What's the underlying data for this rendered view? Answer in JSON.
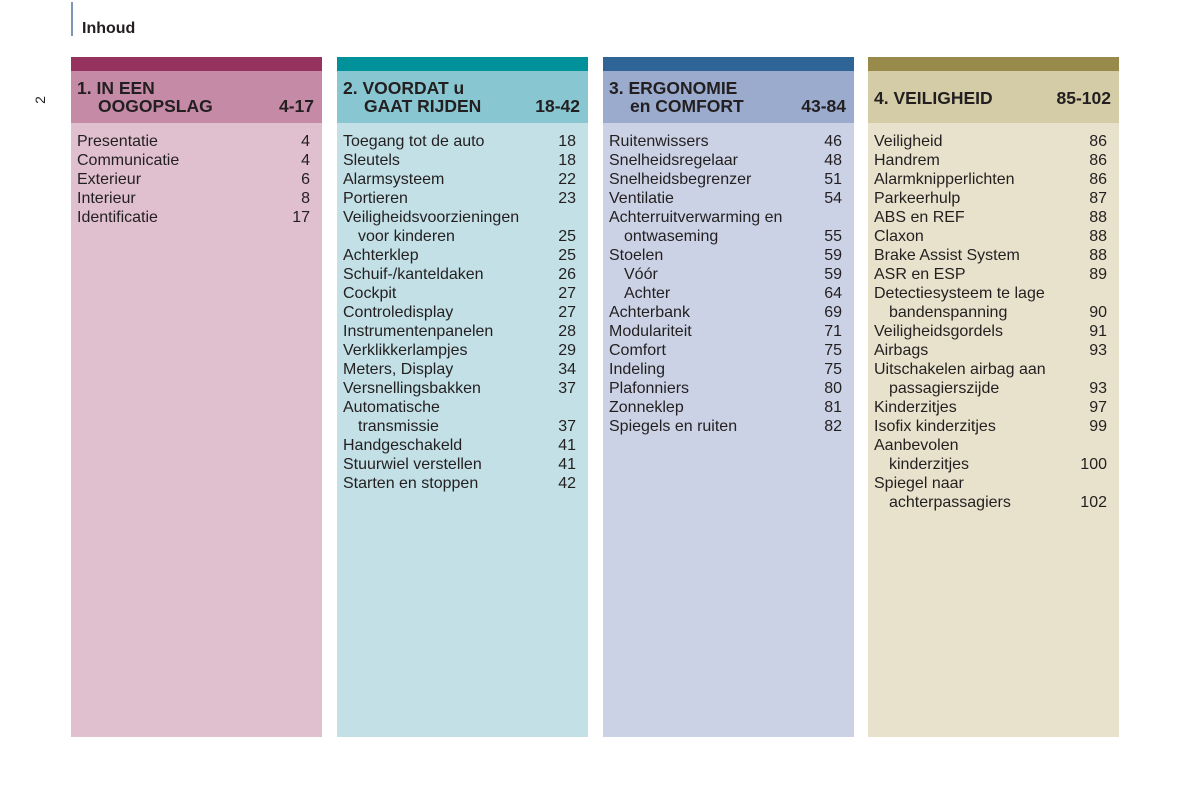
{
  "header": {
    "title": "Inhoud",
    "page_number": "2"
  },
  "sections": [
    {
      "line1": "1. IN EEN",
      "line2": "OOGOPSLAG",
      "pages": "4-17",
      "bar": "#95325e",
      "head": "#c48aa6",
      "body": "#e0c0ce",
      "entries": [
        {
          "lines": [
            "Presentatie"
          ],
          "page": "4"
        },
        {
          "lines": [
            "Communicatie"
          ],
          "page": "4"
        },
        {
          "lines": [
            "Exterieur"
          ],
          "page": "6"
        },
        {
          "lines": [
            "Interieur"
          ],
          "page": "8"
        },
        {
          "lines": [
            "Identificatie"
          ],
          "page": "17"
        }
      ]
    },
    {
      "line1": "2. VOORDAT u",
      "line2": "GAAT RIJDEN",
      "pages": "18-42",
      "bar": "#00919b",
      "head": "#88c7d2",
      "body": "#c2e0e6",
      "entries": [
        {
          "lines": [
            "Toegang tot de auto"
          ],
          "page": "18"
        },
        {
          "lines": [
            "Sleutels"
          ],
          "page": "18"
        },
        {
          "lines": [
            "Alarmsysteem"
          ],
          "page": "22"
        },
        {
          "lines": [
            "Portieren"
          ],
          "page": "23"
        },
        {
          "lines": [
            "Veiligheidsvoorzieningen",
            "voor kinderen"
          ],
          "page": "25"
        },
        {
          "lines": [
            "Achterklep"
          ],
          "page": "25"
        },
        {
          "lines": [
            "Schuif-/kanteldaken"
          ],
          "page": "26"
        },
        {
          "lines": [
            "Cockpit"
          ],
          "page": "27"
        },
        {
          "lines": [
            "Controledisplay"
          ],
          "page": "27"
        },
        {
          "lines": [
            "Instrumentenpanelen"
          ],
          "page": "28"
        },
        {
          "lines": [
            "Verklikkerlampjes"
          ],
          "page": "29"
        },
        {
          "lines": [
            "Meters, Display"
          ],
          "page": "34"
        },
        {
          "lines": [
            "Versnellingsbakken"
          ],
          "page": "37"
        },
        {
          "lines": [
            "Automatische",
            "transmissie"
          ],
          "page": "37"
        },
        {
          "lines": [
            "Handgeschakeld"
          ],
          "page": "41"
        },
        {
          "lines": [
            "Stuurwiel verstellen"
          ],
          "page": "41"
        },
        {
          "lines": [
            "Starten en stoppen"
          ],
          "page": "42"
        }
      ]
    },
    {
      "line1": "3. ERGONOMIE",
      "line2": "en COMFORT",
      "pages": "43-84",
      "bar": "#2e6496",
      "head": "#9aabcd",
      "body": "#cbd2e5",
      "entries": [
        {
          "lines": [
            "Ruitenwissers"
          ],
          "page": "46"
        },
        {
          "lines": [
            "Snelheidsregelaar"
          ],
          "page": "48"
        },
        {
          "lines": [
            "Snelheidsbegrenzer"
          ],
          "page": "51"
        },
        {
          "lines": [
            "Ventilatie"
          ],
          "page": "54"
        },
        {
          "lines": [
            "Achterruitverwarming en",
            "ontwaseming"
          ],
          "page": "55"
        },
        {
          "lines": [
            "Stoelen"
          ],
          "page": "59"
        },
        {
          "lines": [
            "Vóór"
          ],
          "page": "59",
          "sub": true
        },
        {
          "lines": [
            "Achter"
          ],
          "page": "64",
          "sub": true
        },
        {
          "lines": [
            "Achterbank"
          ],
          "page": "69"
        },
        {
          "lines": [
            "Modulariteit"
          ],
          "page": "71"
        },
        {
          "lines": [
            "Comfort"
          ],
          "page": "75"
        },
        {
          "lines": [
            "Indeling"
          ],
          "page": "75"
        },
        {
          "lines": [
            "Plafonniers"
          ],
          "page": "80"
        },
        {
          "lines": [
            "Zonneklep"
          ],
          "page": "81"
        },
        {
          "lines": [
            "Spiegels en ruiten"
          ],
          "page": "82"
        }
      ]
    },
    {
      "line1": "4. VEILIGHEID",
      "line2": "",
      "pages": "85-102",
      "bar": "#978a4a",
      "head": "#d3cca6",
      "body": "#e8e2cc",
      "entries": [
        {
          "lines": [
            "Veiligheid"
          ],
          "page": "86"
        },
        {
          "lines": [
            "Handrem"
          ],
          "page": "86"
        },
        {
          "lines": [
            "Alarmknipperlichten"
          ],
          "page": "86"
        },
        {
          "lines": [
            "Parkeerhulp"
          ],
          "page": "87"
        },
        {
          "lines": [
            "ABS en REF"
          ],
          "page": "88"
        },
        {
          "lines": [
            "Claxon"
          ],
          "page": "88"
        },
        {
          "lines": [
            "Brake Assist System"
          ],
          "page": "88"
        },
        {
          "lines": [
            "ASR en ESP"
          ],
          "page": "89"
        },
        {
          "lines": [
            "Detectiesysteem te lage",
            "bandenspanning"
          ],
          "page": "90"
        },
        {
          "lines": [
            "Veiligheidsgordels"
          ],
          "page": "91"
        },
        {
          "lines": [
            "Airbags"
          ],
          "page": "93"
        },
        {
          "lines": [
            "Uitschakelen airbag aan",
            "passagierszijde"
          ],
          "page": "93"
        },
        {
          "lines": [
            "Kinderzitjes"
          ],
          "page": "97"
        },
        {
          "lines": [
            "Isofix kinderzitjes"
          ],
          "page": "99"
        },
        {
          "lines": [
            "Aanbevolen",
            "kinderzitjes"
          ],
          "page": "100"
        },
        {
          "lines": [
            "Spiegel naar",
            "achterpassagiers"
          ],
          "page": "102"
        }
      ]
    }
  ]
}
